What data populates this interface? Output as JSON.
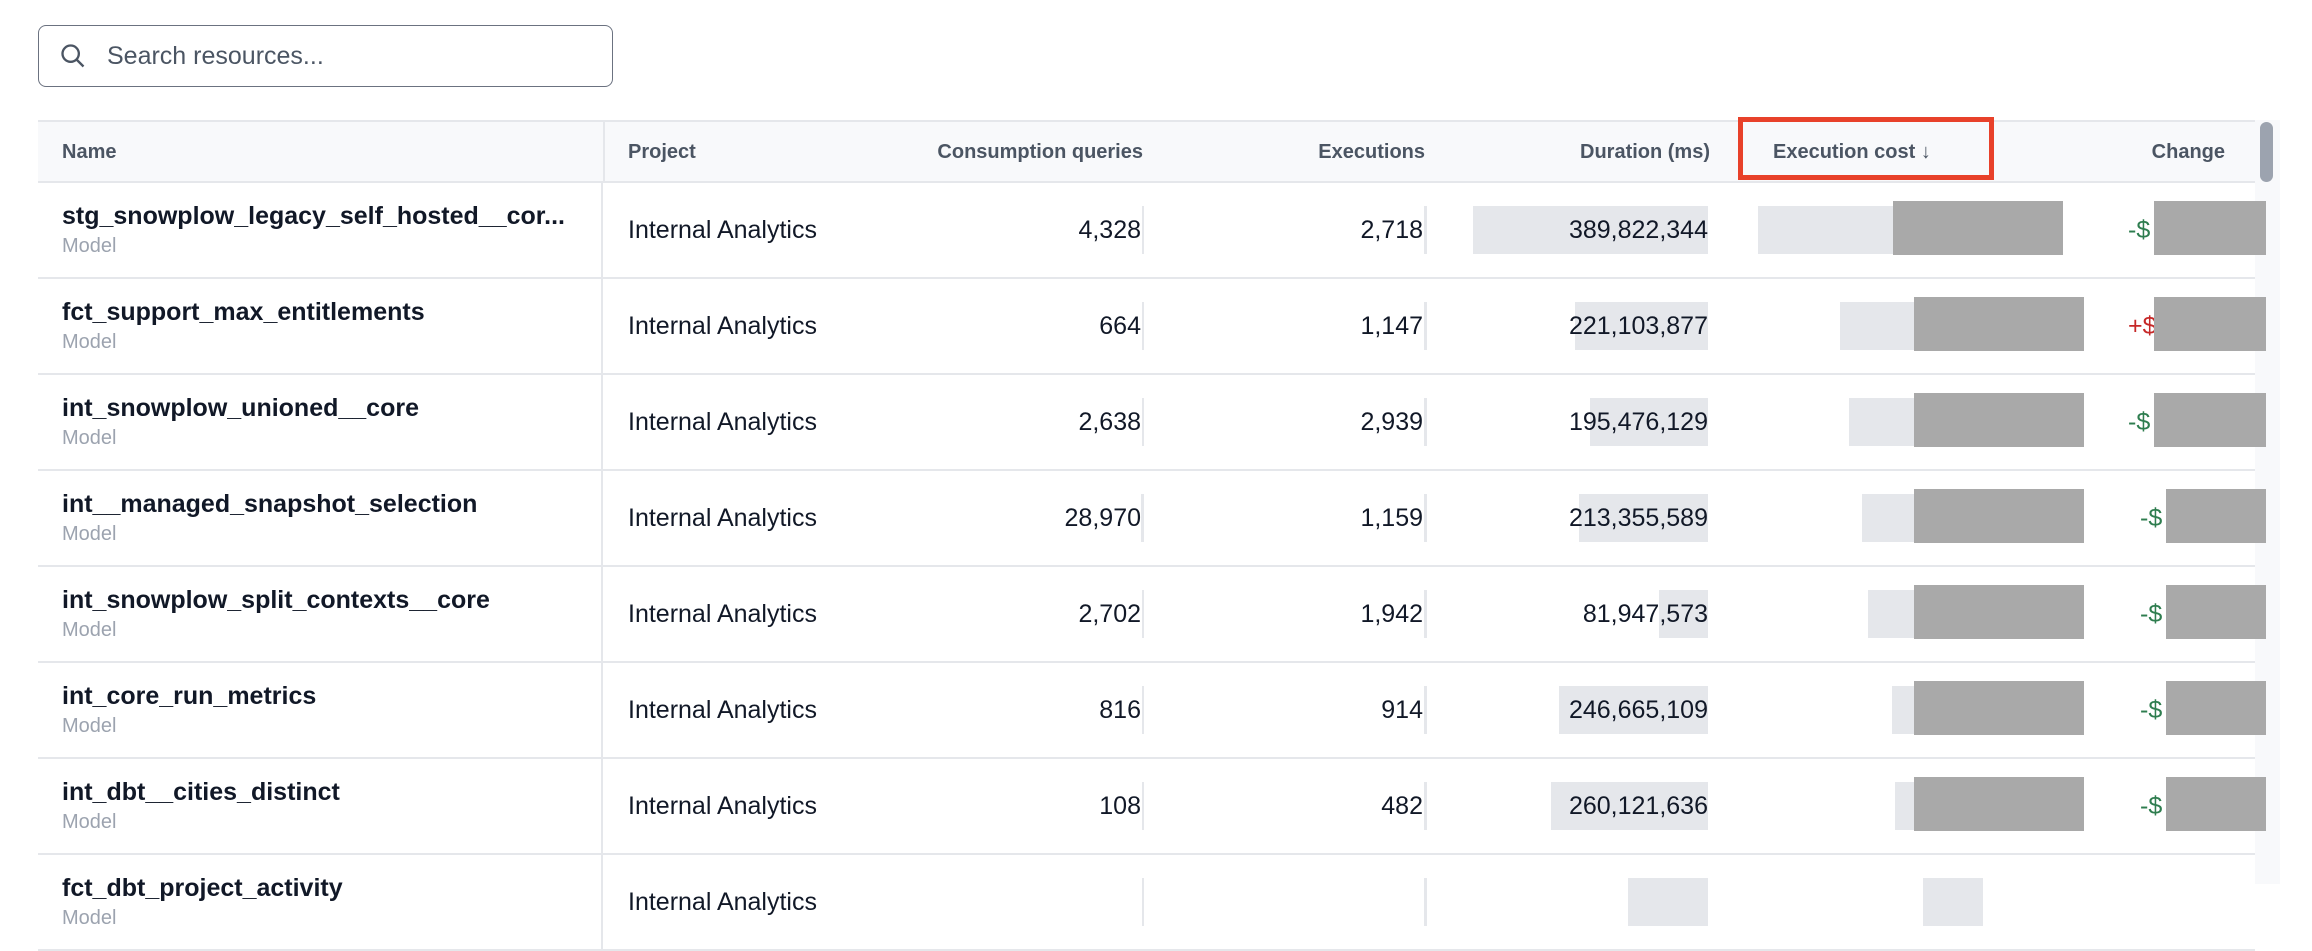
{
  "search": {
    "placeholder": "Search resources...",
    "icon": "search-icon"
  },
  "table": {
    "columns": {
      "name": "Name",
      "project": "Project",
      "consumption": "Consumption queries",
      "executions": "Executions",
      "duration": "Duration (ms)",
      "cost": "Execution cost",
      "cost_sort": "↓",
      "change": "Change"
    },
    "sorted_column": "Execution cost",
    "sort_direction": "descending",
    "colors": {
      "negative_change": "#2e7d4f",
      "positive_change": "#c62828",
      "highlight": "#e8412a"
    },
    "rows": [
      {
        "name": "stg_snowplow_legacy_self_hosted__cor...",
        "type": "Model",
        "project": "Internal Analytics",
        "consumption": "4,328",
        "executions": "2,718",
        "duration": "389,822,344",
        "cost": "$",
        "cost_bar": 1.0,
        "change": "-$",
        "change_dir": "neg"
      },
      {
        "name": "fct_support_max_entitlements",
        "type": "Model",
        "project": "Internal Analytics",
        "consumption": "664",
        "executions": "1,147",
        "duration": "221,103,877",
        "cost": "$",
        "cost_bar": 0.73,
        "change": "+$",
        "change_dir": "pos"
      },
      {
        "name": "int_snowplow_unioned__core",
        "type": "Model",
        "project": "Internal Analytics",
        "consumption": "2,638",
        "executions": "2,939",
        "duration": "195,476,129",
        "cost": "$",
        "cost_bar": 0.7,
        "change": "-$",
        "change_dir": "neg"
      },
      {
        "name": "int__managed_snapshot_selection",
        "type": "Model",
        "project": "Internal Analytics",
        "consumption": "28,970",
        "executions": "1,159",
        "duration": "213,355,589",
        "cost": "$",
        "cost_bar": 0.66,
        "change": "-$",
        "change_dir": "neg"
      },
      {
        "name": "int_snowplow_split_contexts__core",
        "type": "Model",
        "project": "Internal Analytics",
        "consumption": "2,702",
        "executions": "1,942",
        "duration": "81,947,573",
        "cost": "$",
        "cost_bar": 0.64,
        "change": "-$",
        "change_dir": "neg"
      },
      {
        "name": "int_core_run_metrics",
        "type": "Model",
        "project": "Internal Analytics",
        "consumption": "816",
        "executions": "914",
        "duration": "246,665,109",
        "cost": "$",
        "cost_bar": 0.56,
        "change": "-$",
        "change_dir": "neg"
      },
      {
        "name": "int_dbt__cities_distinct",
        "type": "Model",
        "project": "Internal Analytics",
        "consumption": "108",
        "executions": "482",
        "duration": "260,121,636",
        "cost": "$",
        "cost_bar": 0.55,
        "change": "-$",
        "change_dir": "neg"
      },
      {
        "name": "fct_dbt_project_activity",
        "type": "Model",
        "project": "Internal Analytics",
        "consumption": "",
        "executions": "",
        "duration": "",
        "cost": "",
        "cost_bar": 0.2,
        "change": "",
        "change_dir": "neg"
      }
    ]
  }
}
